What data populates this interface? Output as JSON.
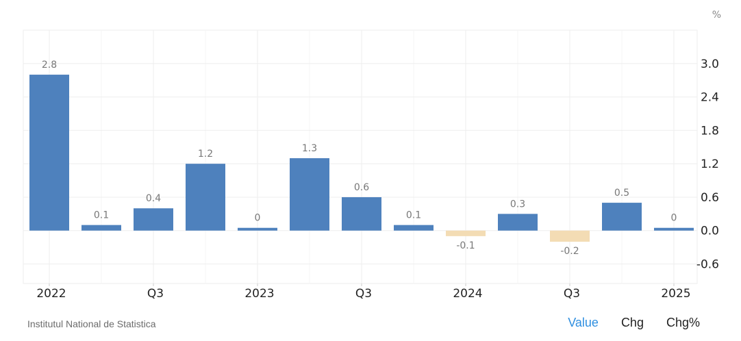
{
  "chart_data": {
    "type": "bar",
    "unit": "%",
    "categories": [
      "2022 Q1",
      "2022 Q2",
      "2022 Q3",
      "2022 Q4",
      "2023 Q1",
      "2023 Q2",
      "2023 Q3",
      "2023 Q4",
      "2024 Q1",
      "2024 Q2",
      "2024 Q3",
      "2024 Q4",
      "2025 Q1"
    ],
    "values": [
      2.8,
      0.1,
      0.4,
      1.2,
      0,
      1.3,
      0.6,
      0.1,
      -0.1,
      0.3,
      -0.2,
      0.5,
      0
    ],
    "value_labels": [
      "2.8",
      "0.1",
      "0.4",
      "1.2",
      "0",
      "1.3",
      "0.6",
      "0.1",
      "-0.1",
      "0.3",
      "-0.2",
      "0.5",
      "0"
    ],
    "x_tick_labels": [
      "2022",
      "Q3",
      "2023",
      "Q3",
      "2024",
      "Q3",
      "2025"
    ],
    "y_tick_labels": [
      "3.0",
      "2.4",
      "1.8",
      "1.2",
      "0.6",
      "0.0",
      "-0.6"
    ],
    "y_ticks": [
      3.0,
      2.4,
      1.8,
      1.2,
      0.6,
      0.0,
      -0.6
    ],
    "ylim": [
      -0.95,
      3.6
    ],
    "grid": true,
    "y_axis_position": "right",
    "colors": {
      "positive": "#4e81bd",
      "negative": "#f3dcb4",
      "grid": "#eeeeee",
      "label": "#777777",
      "tick": "#222222"
    }
  },
  "footer": {
    "source": "Institutul National de Statistica",
    "tabs": [
      {
        "label": "Value",
        "active": true
      },
      {
        "label": "Chg",
        "active": false
      },
      {
        "label": "Chg%",
        "active": false
      }
    ]
  },
  "colors": {
    "active_tab": "#2f8fe0"
  }
}
